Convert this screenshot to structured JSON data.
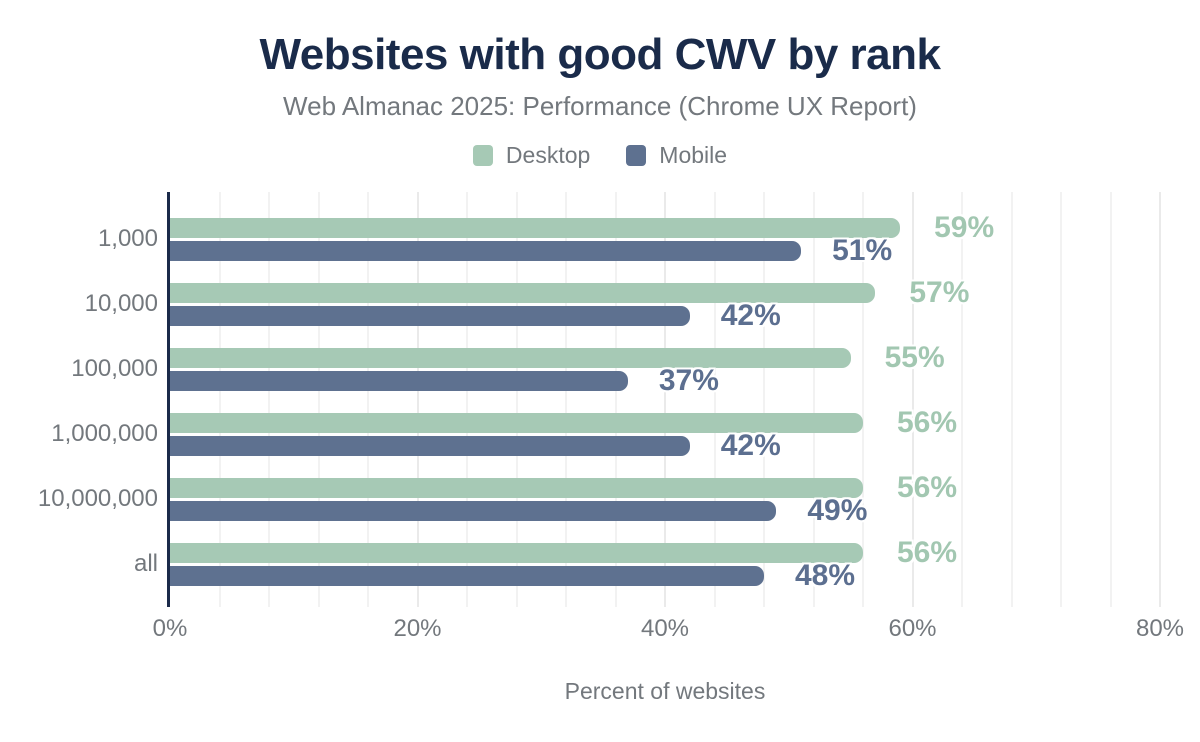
{
  "title": "Websites with good CWV by rank",
  "subtitle": "Web Almanac 2025: Performance (Chrome UX Report)",
  "legend": {
    "items": [
      {
        "label": "Desktop",
        "color": "#a6c9b5"
      },
      {
        "label": "Mobile",
        "color": "#5e7190"
      }
    ]
  },
  "colors": {
    "title": "#1a2b4a",
    "axis_line": "#1b2a4a",
    "muted_text": "#73787d",
    "desktop_bar": "#a6c9b5",
    "desktop_value_text": "#a2c7b1",
    "mobile_bar": "#5e7190",
    "mobile_value_text": "#5c6f90",
    "gridline_minor": "#f2f2f2",
    "gridline_major": "#eaeaea"
  },
  "chart_data": {
    "type": "bar",
    "orientation": "horizontal",
    "title": "Websites with good CWV by rank",
    "subtitle": "Web Almanac 2025: Performance (Chrome UX Report)",
    "categories": [
      "1,000",
      "10,000",
      "100,000",
      "1,000,000",
      "10,000,000",
      "all"
    ],
    "series": [
      {
        "name": "Desktop",
        "color": "#a6c9b5",
        "values": [
          59,
          57,
          55,
          56,
          56,
          56
        ]
      },
      {
        "name": "Mobile",
        "color": "#5e7190",
        "values": [
          51,
          42,
          37,
          42,
          49,
          48
        ]
      }
    ],
    "value_suffix": "%",
    "xlabel": "Percent of websites",
    "ylabel": "",
    "xlim": [
      0,
      80
    ],
    "x_ticks": [
      {
        "value": 0,
        "label": "0%"
      },
      {
        "value": 20,
        "label": "20%"
      },
      {
        "value": 40,
        "label": "40%"
      },
      {
        "value": 60,
        "label": "60%"
      },
      {
        "value": 80,
        "label": "80%"
      }
    ],
    "grid": {
      "show": true,
      "minor_step": 4,
      "major_step": 20
    },
    "legend_position": "top",
    "data_labels": "shown next to bar ends, colored per series with white outline"
  }
}
